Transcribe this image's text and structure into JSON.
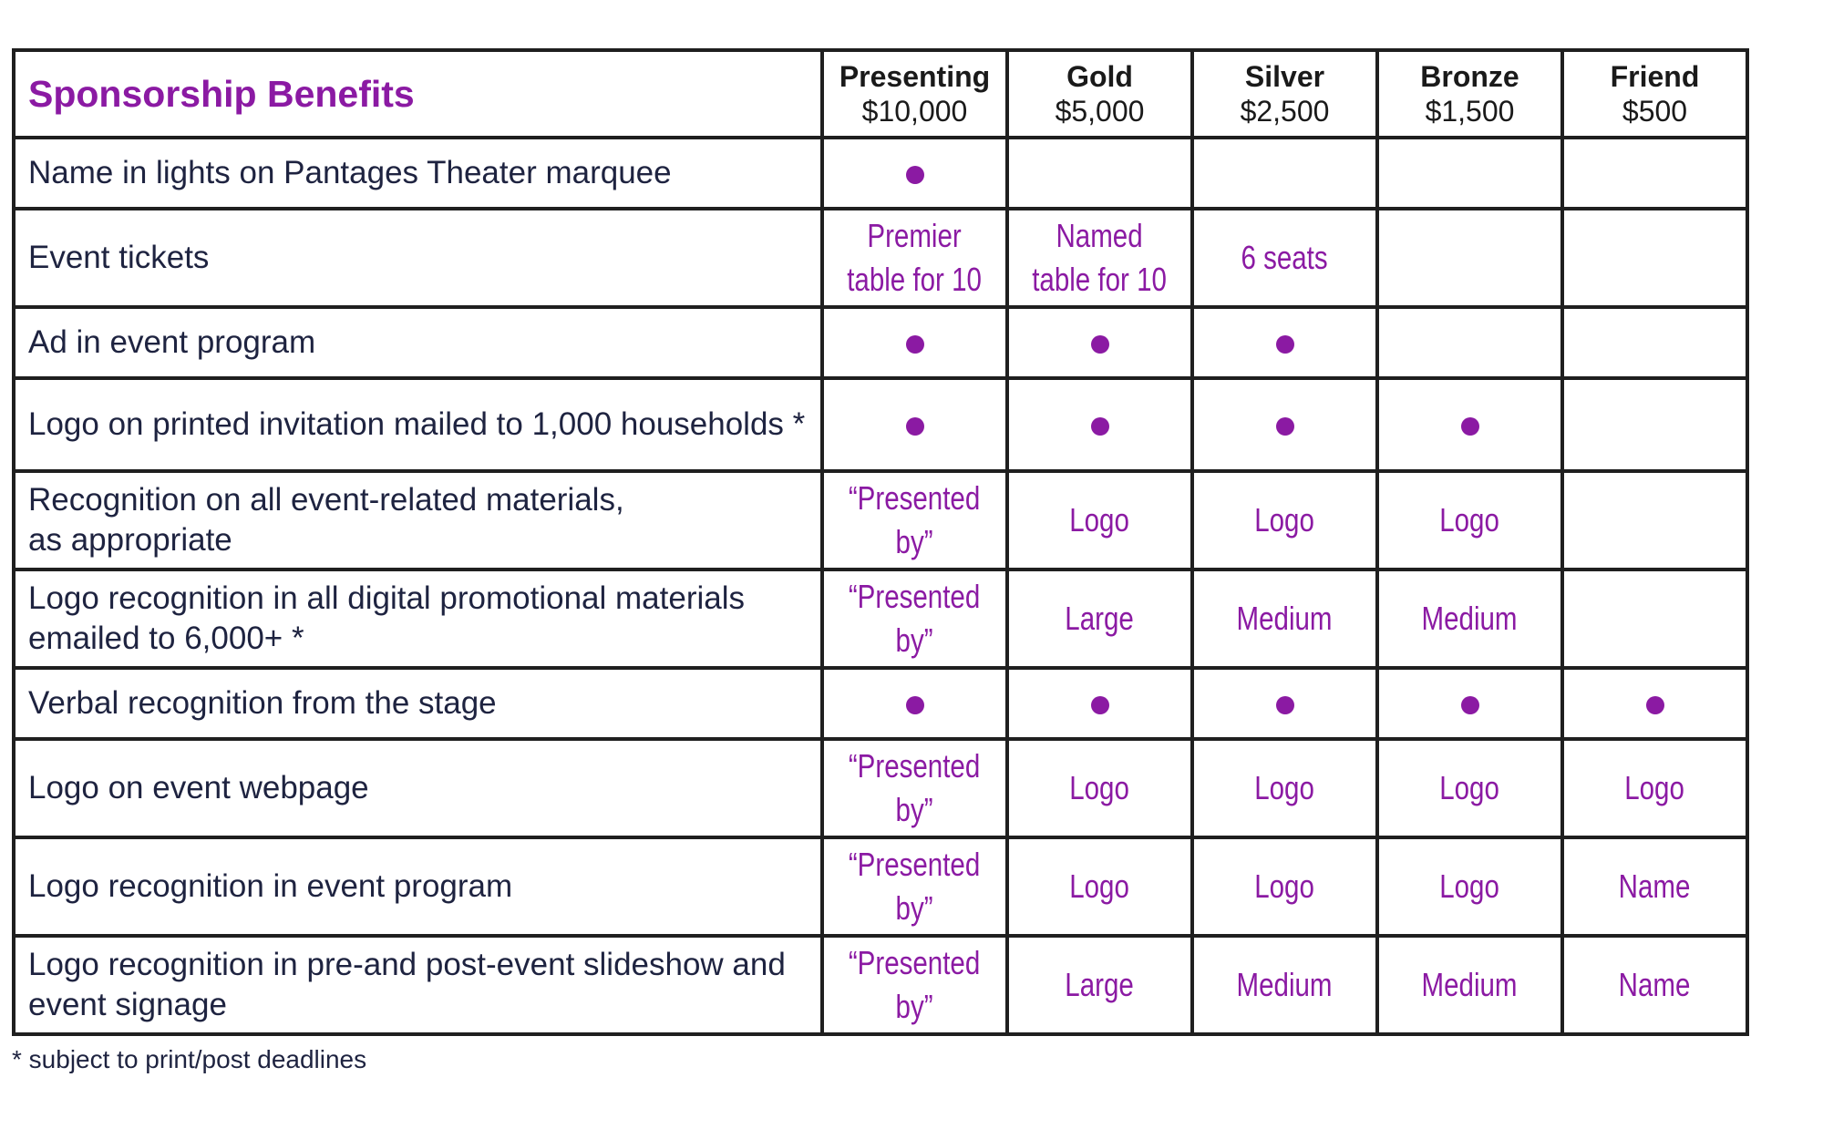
{
  "title": "Sponsorship Benefits",
  "colors": {
    "accent": "#8b1aa3",
    "text": "#1e2340",
    "border": "#1f1f1f"
  },
  "tiers": [
    {
      "name": "Presenting",
      "price": "$10,000"
    },
    {
      "name": "Gold",
      "price": "$5,000"
    },
    {
      "name": "Silver",
      "price": "$2,500"
    },
    {
      "name": "Bronze",
      "price": "$1,500"
    },
    {
      "name": "Friend",
      "price": "$500"
    }
  ],
  "rows": [
    {
      "benefit": "Name in lights on  Pantages Theater marquee",
      "height": "dot-row",
      "values": [
        "●",
        "",
        "",
        "",
        ""
      ]
    },
    {
      "benefit": "Event tickets",
      "values": [
        "Premier\ntable for 10",
        "Named\ntable for 10",
        "6 seats",
        "",
        ""
      ]
    },
    {
      "benefit": "Ad in event program",
      "values": [
        "●",
        "●",
        "●",
        "",
        ""
      ]
    },
    {
      "benefit": "Logo on printed invitation mailed to 1,000 households *",
      "values": [
        "●",
        "●",
        "●",
        "●",
        ""
      ]
    },
    {
      "benefit": "Recognition on all event-related materials,\nas appropriate",
      "values": [
        "“Presented\nby”",
        "Logo",
        "Logo",
        "Logo",
        ""
      ]
    },
    {
      "benefit": "Logo recognition in all digital promotional materials emailed to 6,000+ *",
      "values": [
        "“Presented\nby”",
        "Large",
        "Medium",
        "Medium",
        ""
      ]
    },
    {
      "benefit": "Verbal recognition from the stage",
      "values": [
        "●",
        "●",
        "●",
        "●",
        "●"
      ]
    },
    {
      "benefit": "Logo on event webpage",
      "values": [
        "“Presented\nby”",
        "Logo",
        "Logo",
        "Logo",
        "Logo"
      ]
    },
    {
      "benefit": "Logo recognition in event program",
      "values": [
        "“Presented\nby”",
        "Logo",
        "Logo",
        "Logo",
        "Name"
      ]
    },
    {
      "benefit": "Logo recognition in pre-and post-event slideshow and event signage",
      "values": [
        "“Presented\nby”",
        "Large",
        "Medium",
        "Medium",
        "Name"
      ]
    }
  ],
  "footnote": "* subject to print/post deadlines"
}
